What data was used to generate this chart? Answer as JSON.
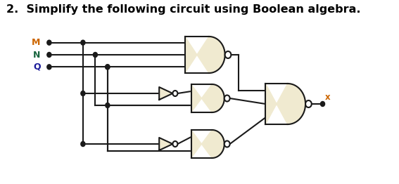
{
  "title": "2.  Simplify the following circuit using Boolean algebra.",
  "title_fontsize": 11.5,
  "title_fontweight": "bold",
  "gate_fill": "#f0ead0",
  "gate_edge": "#1a1a1a",
  "wire_color": "#1a1a1a",
  "dot_color": "#1a1a1a",
  "input_labels": [
    "M",
    "N",
    "Q"
  ],
  "label_colors": [
    "#cc6600",
    "#1a6640",
    "#1a1a99"
  ],
  "output_label": "x",
  "output_label_color": "#cc6600",
  "lw": 1.5,
  "bubble_fill": "white"
}
